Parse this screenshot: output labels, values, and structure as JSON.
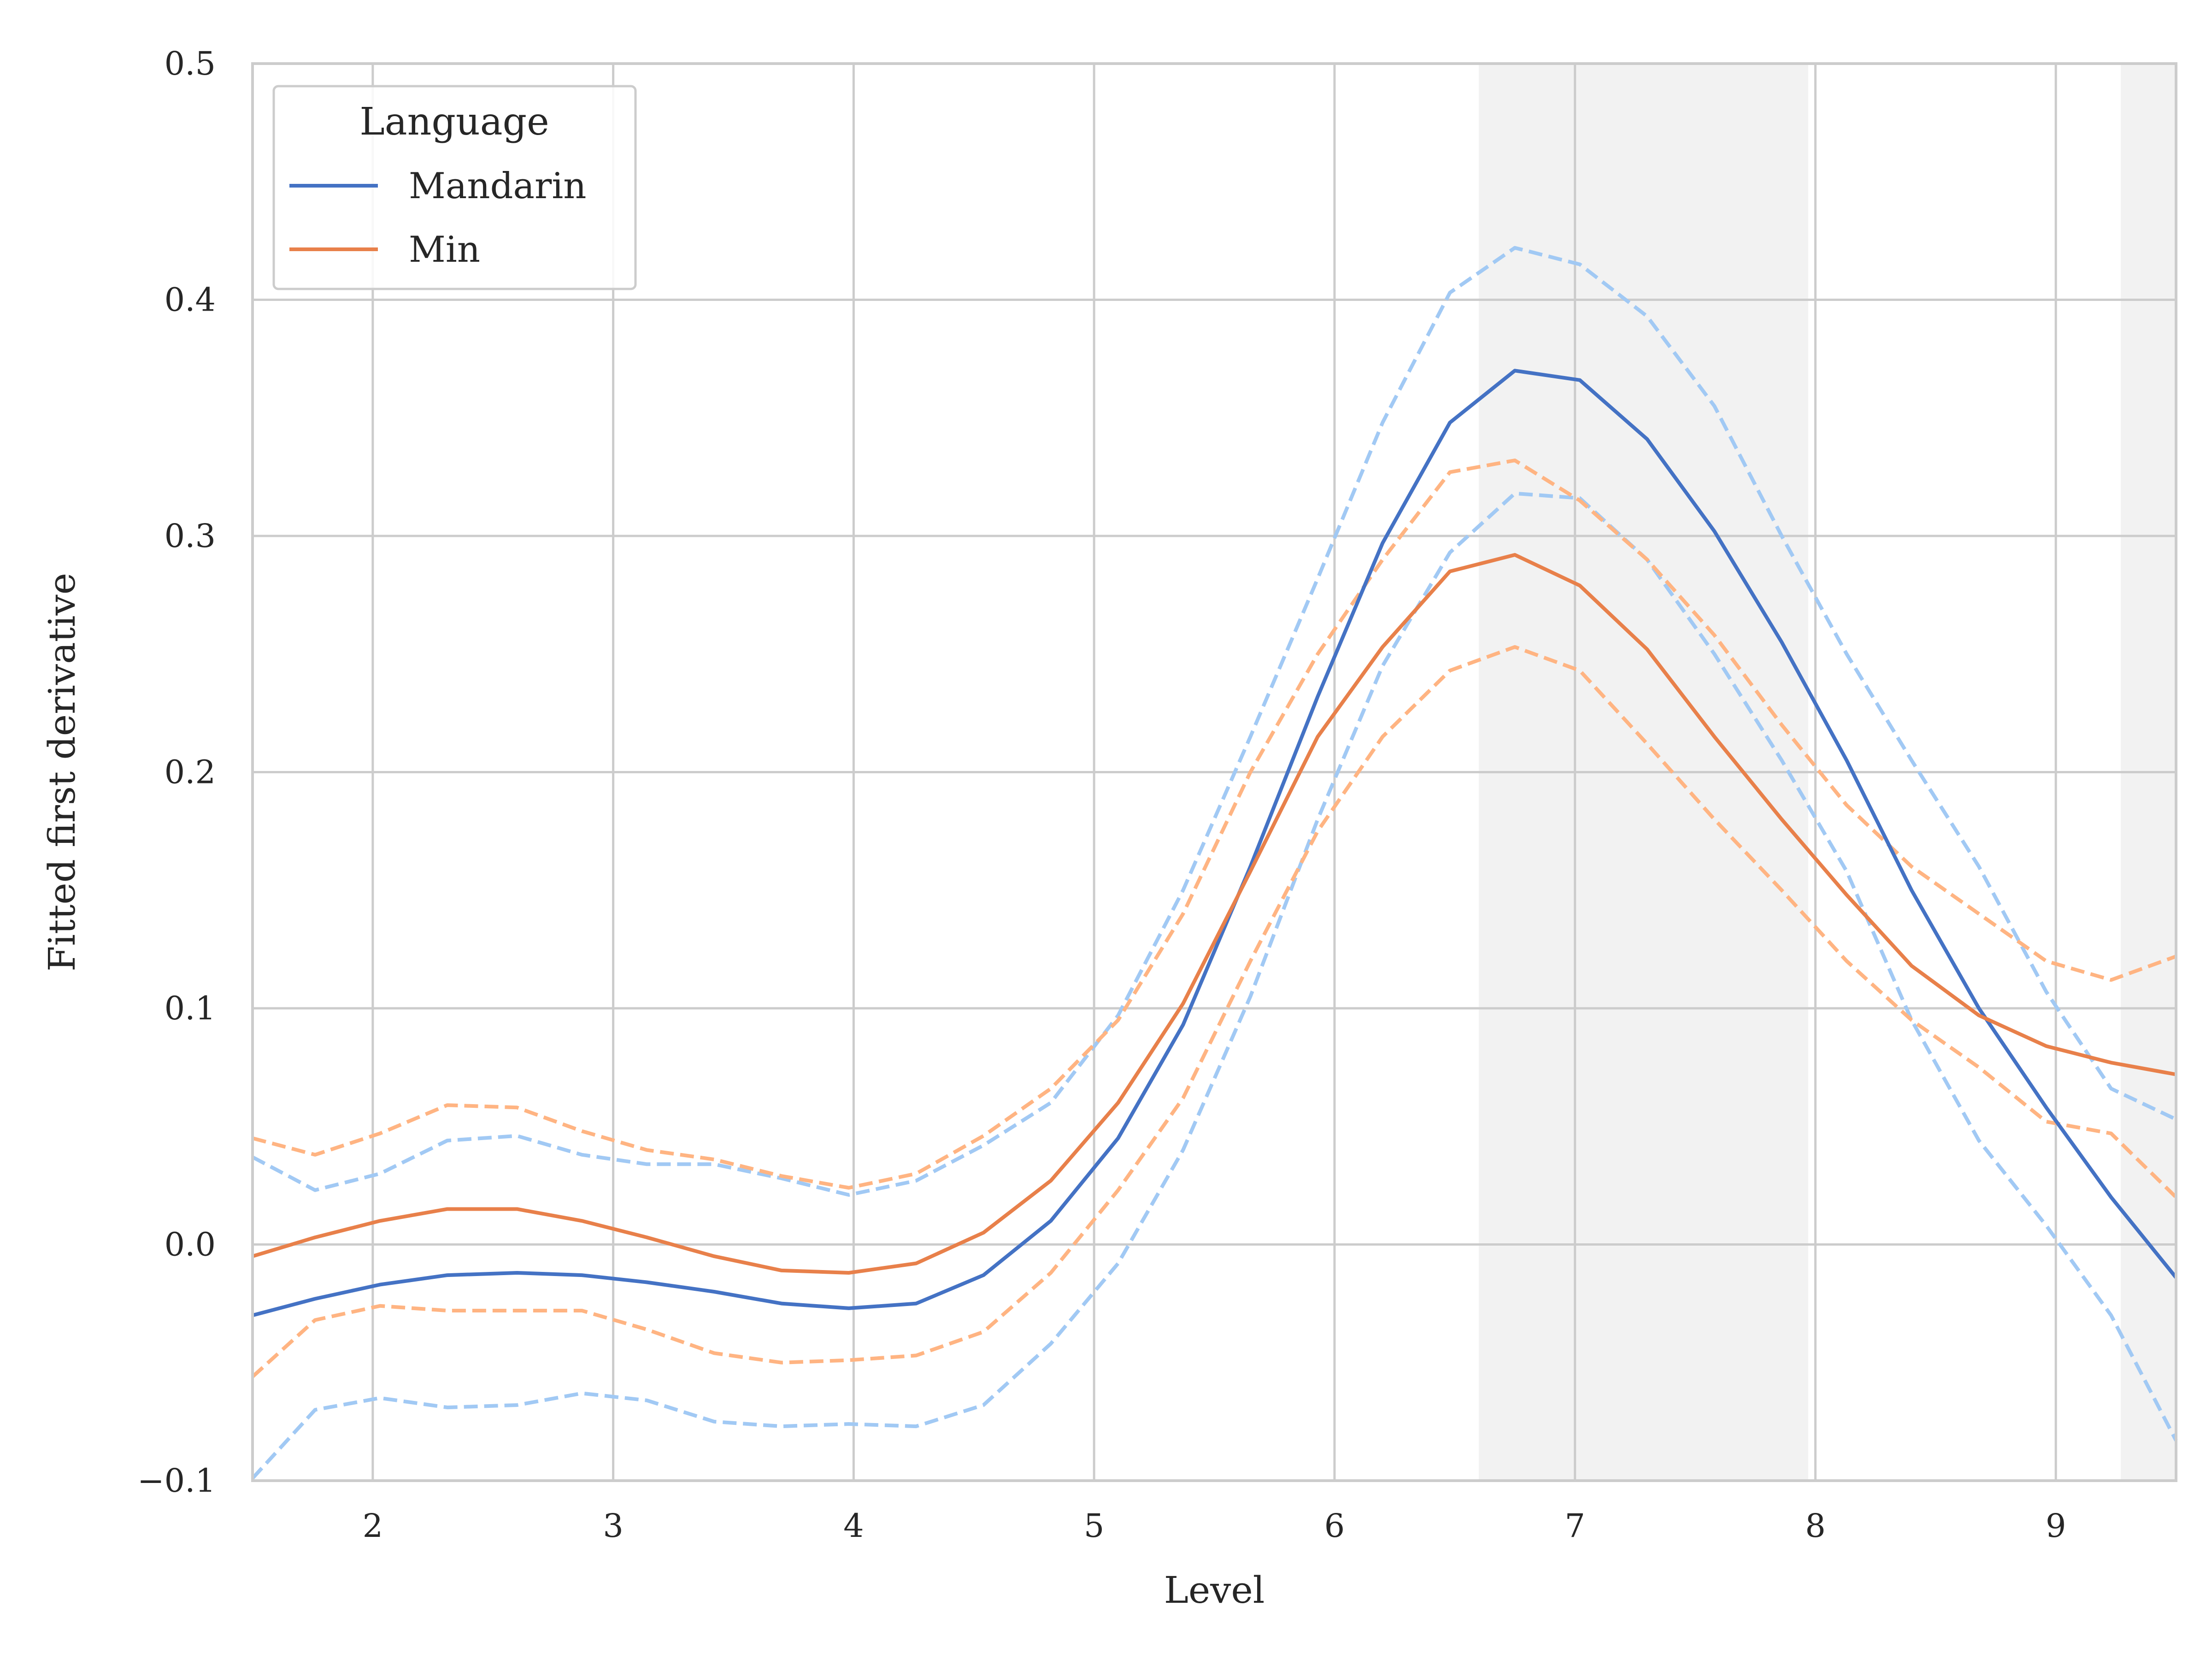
{
  "chart_data": {
    "type": "line",
    "title": "",
    "xlabel": "Level",
    "ylabel": "Fitted first derivative",
    "xlim": [
      1.5,
      9.5
    ],
    "ylim": [
      -0.1,
      0.5
    ],
    "xticks": [
      2,
      3,
      4,
      5,
      6,
      7,
      8,
      9
    ],
    "xtick_labels": [
      "2",
      "3",
      "4",
      "5",
      "6",
      "7",
      "8",
      "9"
    ],
    "yticks": [
      -0.1,
      0.0,
      0.1,
      0.2,
      0.3,
      0.4,
      0.5
    ],
    "ytick_labels": [
      "−0.1",
      "0.0",
      "0.1",
      "0.2",
      "0.3",
      "0.4",
      "0.5"
    ],
    "grid": true,
    "shaded_regions": [
      [
        6.6,
        7.97
      ],
      [
        9.27,
        9.5
      ]
    ],
    "legend": {
      "title": "Language",
      "placement": "top-left"
    },
    "x": [
      1.5,
      1.76,
      2.03,
      2.31,
      2.6,
      2.87,
      3.14,
      3.42,
      3.7,
      3.98,
      4.26,
      4.54,
      4.82,
      5.1,
      5.37,
      5.65,
      5.93,
      6.2,
      6.48,
      6.75,
      7.02,
      7.3,
      7.58,
      7.86,
      8.13,
      8.4,
      8.68,
      8.96,
      9.23,
      9.5
    ],
    "series": [
      {
        "name": "Mandarin",
        "color": "#4472c4",
        "values": [
          -0.03,
          -0.023,
          -0.017,
          -0.013,
          -0.012,
          -0.013,
          -0.016,
          -0.02,
          -0.025,
          -0.027,
          -0.025,
          -0.013,
          0.01,
          0.045,
          0.093,
          0.16,
          0.232,
          0.297,
          0.348,
          0.37,
          0.366,
          0.341,
          0.302,
          0.255,
          0.205,
          0.15,
          0.1,
          0.058,
          0.02,
          -0.014
        ],
        "ci_upper": [
          0.037,
          0.023,
          0.03,
          0.044,
          0.046,
          0.038,
          0.034,
          0.034,
          0.028,
          0.021,
          0.027,
          0.042,
          0.06,
          0.097,
          0.15,
          0.215,
          0.282,
          0.348,
          0.403,
          0.422,
          0.415,
          0.393,
          0.355,
          0.3,
          0.25,
          0.205,
          0.16,
          0.107,
          0.066,
          0.053
        ],
        "ci_lower": [
          -0.099,
          -0.07,
          -0.065,
          -0.069,
          -0.068,
          -0.063,
          -0.066,
          -0.075,
          -0.077,
          -0.076,
          -0.077,
          -0.068,
          -0.042,
          -0.008,
          0.04,
          0.105,
          0.18,
          0.245,
          0.293,
          0.318,
          0.316,
          0.29,
          0.25,
          0.205,
          0.158,
          0.095,
          0.044,
          0.008,
          -0.03,
          -0.083
        ]
      },
      {
        "name": "Min",
        "color": "#e8804a",
        "values": [
          -0.005,
          0.003,
          0.01,
          0.015,
          0.015,
          0.01,
          0.003,
          -0.005,
          -0.011,
          -0.012,
          -0.008,
          0.005,
          0.027,
          0.06,
          0.102,
          0.158,
          0.215,
          0.253,
          0.285,
          0.292,
          0.279,
          0.252,
          0.215,
          0.18,
          0.148,
          0.118,
          0.097,
          0.084,
          0.077,
          0.072
        ],
        "ci_upper": [
          0.045,
          0.038,
          0.047,
          0.059,
          0.058,
          0.048,
          0.04,
          0.036,
          0.029,
          0.024,
          0.03,
          0.046,
          0.066,
          0.095,
          0.14,
          0.2,
          0.25,
          0.29,
          0.327,
          0.332,
          0.315,
          0.29,
          0.258,
          0.22,
          0.186,
          0.16,
          0.14,
          0.12,
          0.112,
          0.122
        ],
        "ci_lower": [
          -0.056,
          -0.032,
          -0.026,
          -0.028,
          -0.028,
          -0.028,
          -0.036,
          -0.046,
          -0.05,
          -0.049,
          -0.047,
          -0.037,
          -0.012,
          0.023,
          0.062,
          0.12,
          0.175,
          0.215,
          0.243,
          0.253,
          0.243,
          0.212,
          0.18,
          0.15,
          0.12,
          0.095,
          0.075,
          0.052,
          0.047,
          0.02
        ]
      }
    ]
  },
  "style": {
    "ci_colors": {
      "Mandarin": "#a1c9f4",
      "Min": "#ffb482"
    },
    "grid_color": "#cccccc",
    "shade_color": "#f2f2f2",
    "frame_color": "#cccccc"
  }
}
